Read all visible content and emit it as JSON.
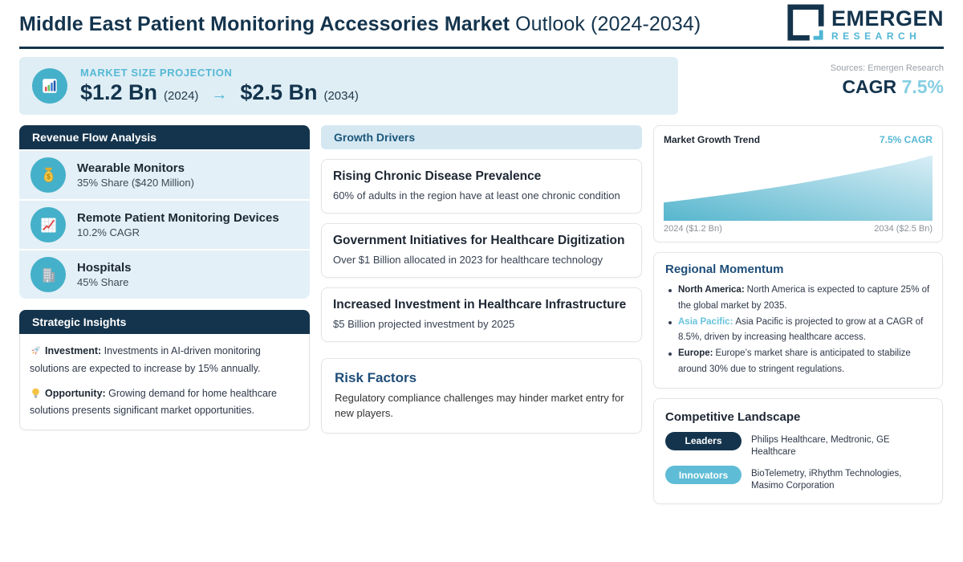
{
  "header": {
    "title_strong": "Middle East Patient Monitoring Accessories Market",
    "title_light": " Outlook (2024-2034)",
    "logo_line1": "EMERGEN",
    "logo_line2": "RESEARCH"
  },
  "market_projection": {
    "label": "MARKET SIZE PROJECTION",
    "value_start": "$1.2 Bn",
    "year_start": "(2024)",
    "arrow": "→",
    "value_end": "$2.5 Bn",
    "year_end": "(2034)",
    "sources": "Sources: Emergen Research",
    "cagr_label": "CAGR",
    "cagr_value": "7.5%"
  },
  "revenue_flow": {
    "title": "Revenue Flow Analysis",
    "items": [
      {
        "icon": "money-bag-icon",
        "name": "Wearable Monitors",
        "stat": "35% Share ($420 Million)"
      },
      {
        "icon": "chart-increasing-icon",
        "name": "Remote Patient Monitoring Devices",
        "stat": "10.2% CAGR"
      },
      {
        "icon": "hospital-building-icon",
        "name": "Hospitals",
        "stat": "45% Share"
      }
    ]
  },
  "strategic_insights": {
    "title": "Strategic Insights",
    "items": [
      {
        "icon": "rocket-icon",
        "label": "Investment:",
        "text": "Investments in AI-driven monitoring solutions are expected to increase by 15% annually."
      },
      {
        "icon": "lightbulb-icon",
        "label": "Opportunity:",
        "text": "Growing demand for home healthcare solutions presents significant market opportunities."
      }
    ]
  },
  "growth_drivers": {
    "title": "Growth Drivers",
    "cards": [
      {
        "title": "Rising Chronic Disease Prevalence",
        "desc": "60% of adults in the region have at least one chronic condition"
      },
      {
        "title": "Government Initiatives for Healthcare Digitization",
        "desc": "Over $1 Billion allocated in 2023 for healthcare technology"
      },
      {
        "title": "Increased Investment in Healthcare Infrastructure",
        "desc": "$5 Billion projected investment by 2025"
      }
    ]
  },
  "risk_factors": {
    "title": "Risk Factors",
    "text": "Regulatory compliance challenges may hinder market entry for new players."
  },
  "market_growth_trend": {
    "title": "Market Growth Trend",
    "cagr": "7.5% CAGR",
    "x_start": "2024 ($1.2 Bn)",
    "x_end": "2034 ($2.5 Bn)"
  },
  "chart_data": {
    "type": "area",
    "title": "Market Growth Trend",
    "annotation": "7.5% CAGR",
    "x": [
      2024,
      2025,
      2026,
      2027,
      2028,
      2029,
      2030,
      2031,
      2032,
      2033,
      2034
    ],
    "values": [
      1.2,
      1.29,
      1.39,
      1.49,
      1.6,
      1.72,
      1.85,
      1.99,
      2.14,
      2.3,
      2.5
    ],
    "unit": "USD Billion",
    "x_tick_labels": [
      "2024 ($1.2 Bn)",
      "2034 ($2.5 Bn)"
    ],
    "grid": false,
    "fill_gradient": [
      "#57b6cd",
      "#d9eef6"
    ]
  },
  "regional_momentum": {
    "title": "Regional Momentum",
    "items": [
      {
        "label": "North America:",
        "text": "North America is expected to capture 25% of the global market by 2035."
      },
      {
        "label": "Asia Pacific:",
        "text": "Asia Pacific is projected to grow at a CAGR of 8.5%, driven by increasing healthcare access."
      },
      {
        "label": "Europe:",
        "text": "Europe’s market share is anticipated to stabilize around 30% due to stringent regulations."
      }
    ]
  },
  "competitive_landscape": {
    "title": "Competitive Landscape",
    "rows": [
      {
        "badge": "Leaders",
        "companies": "Philips Healthcare, Medtronic, GE Healthcare"
      },
      {
        "badge": "Innovators",
        "companies": "BioTelemetry, iRhythm Technologies, Masimo Corporation"
      }
    ]
  },
  "colors": {
    "navy": "#14344d",
    "teal": "#45b0c9",
    "teal_light": "#85cee2",
    "bar_bg": "#dfeef5",
    "row_bg": "#e3f0f7",
    "heading_blue": "#1f4e79"
  }
}
